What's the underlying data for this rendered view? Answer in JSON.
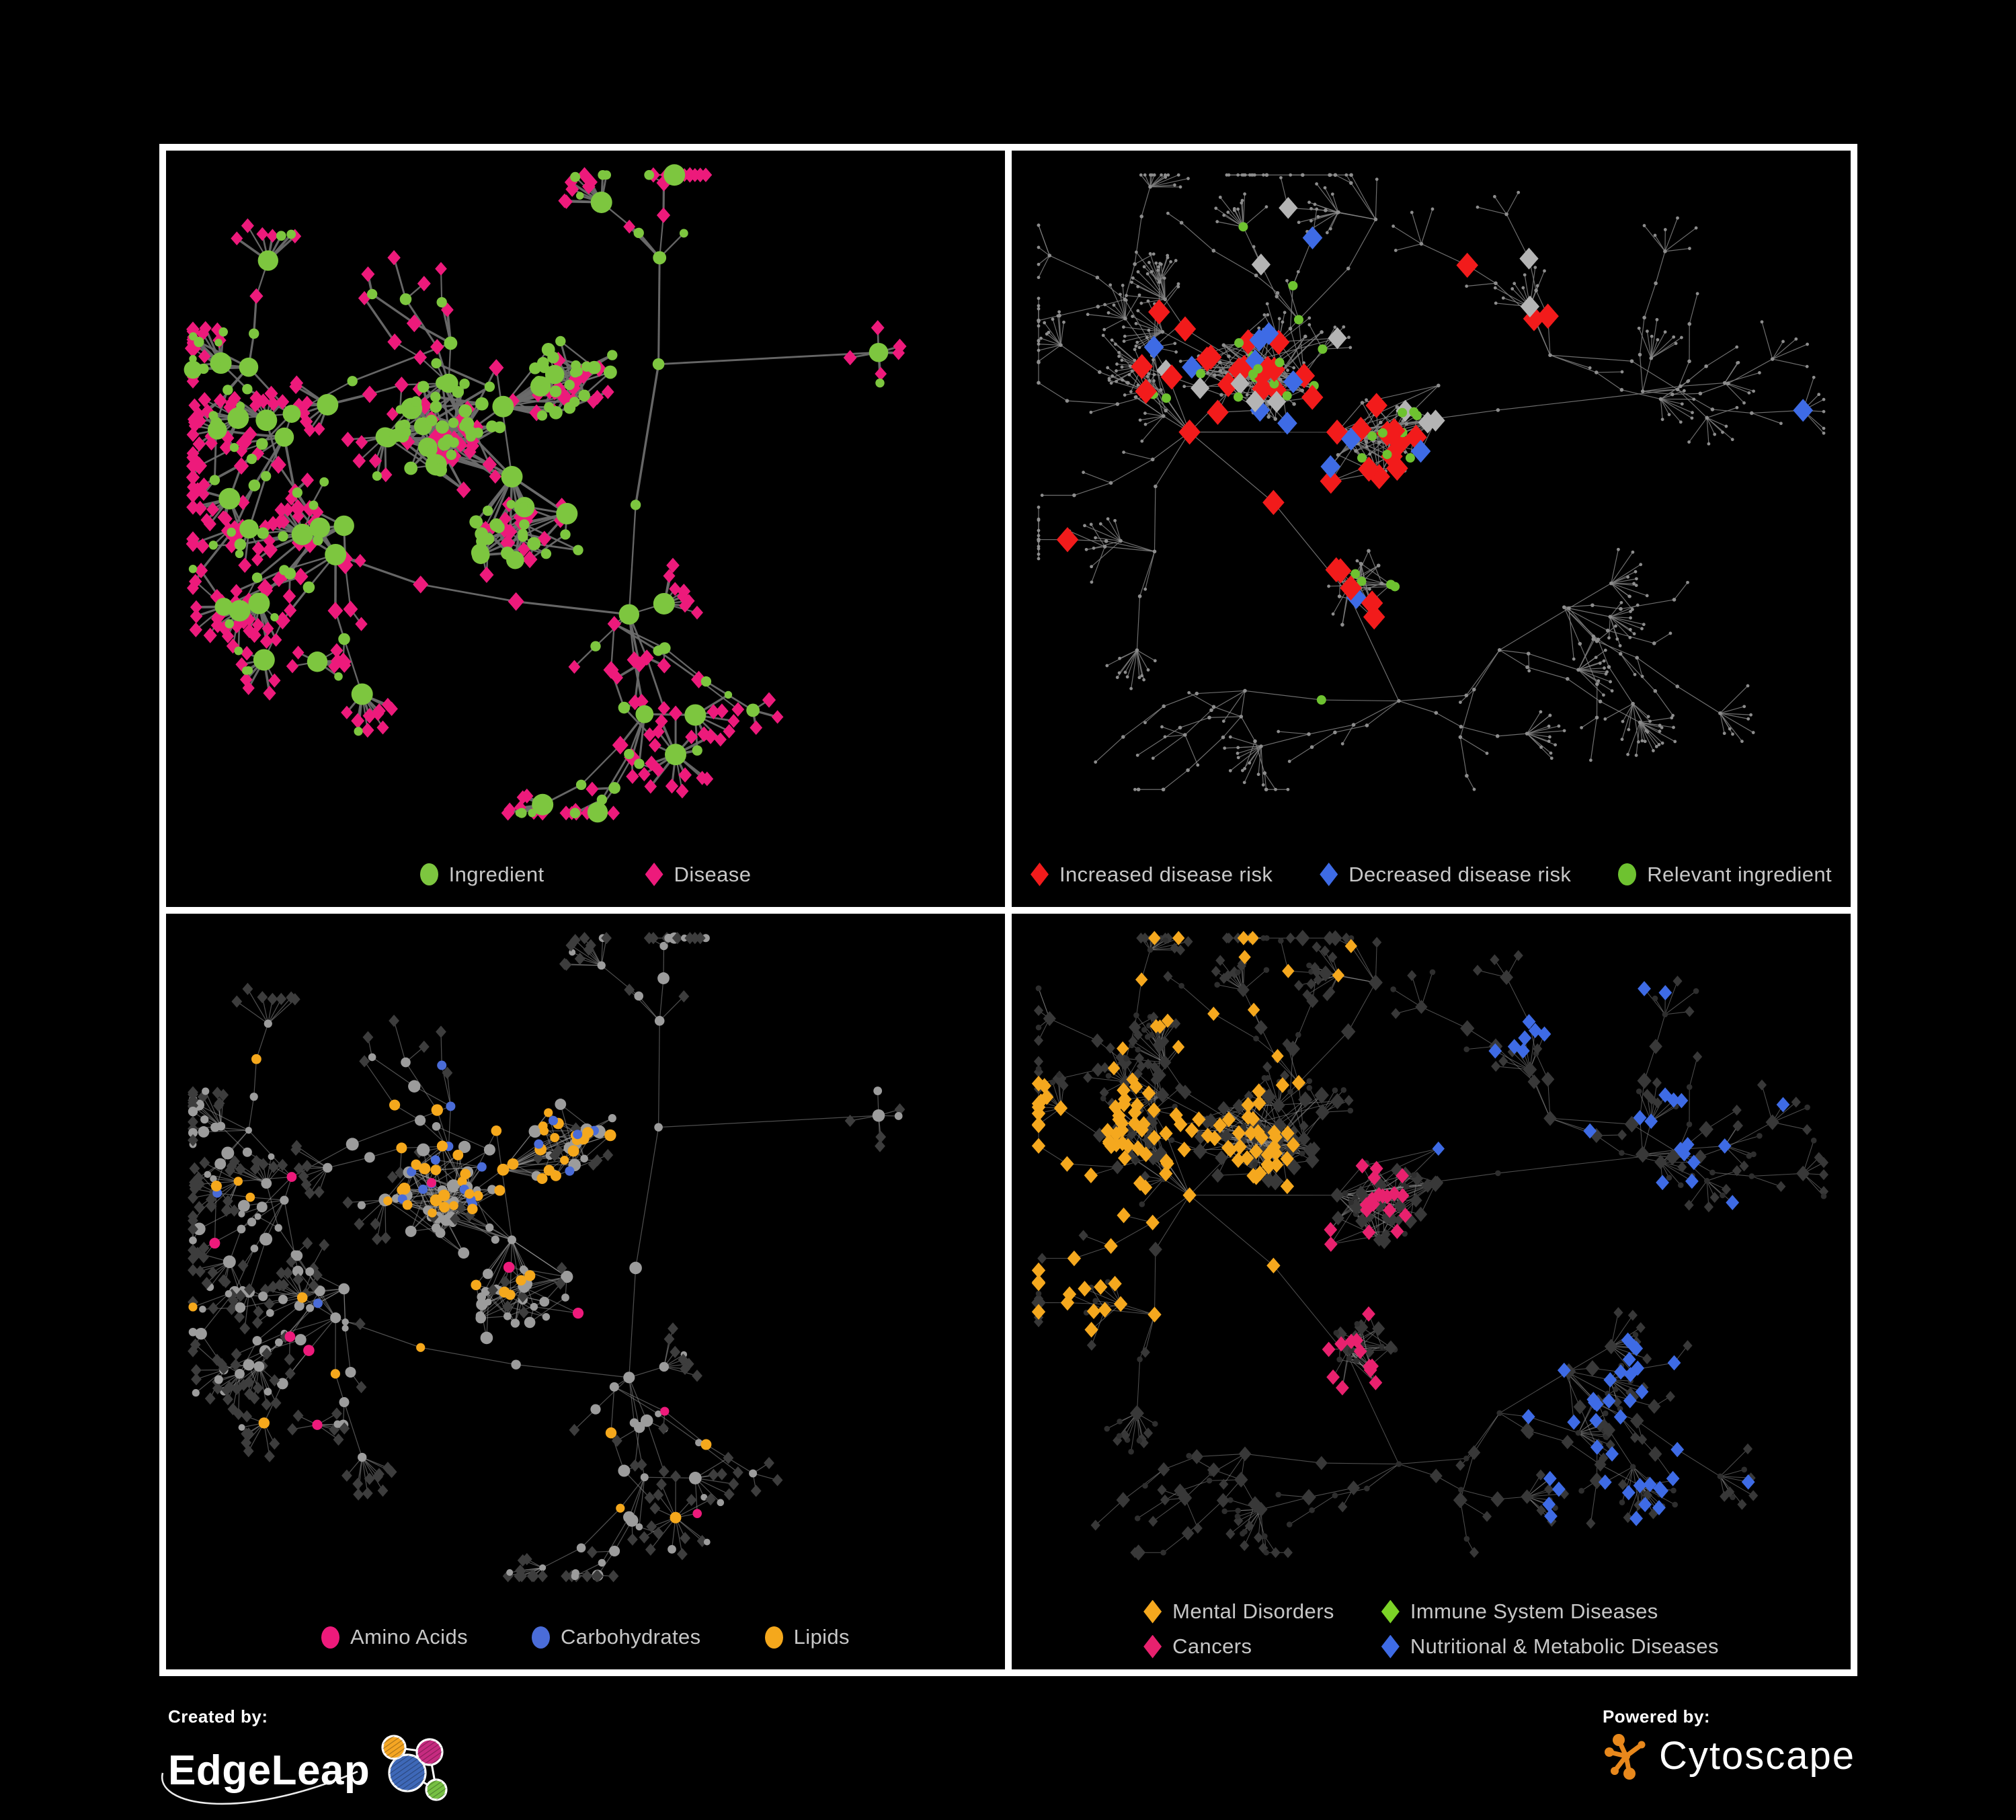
{
  "panels": [
    {
      "id": "ingredient-disease",
      "legend": [
        {
          "label": "Ingredient",
          "shape": "circle",
          "color": "#7DC63F"
        },
        {
          "label": "Disease",
          "shape": "diamond",
          "color": "#ED1A7B"
        }
      ],
      "legend_layout": "row",
      "legend_gap": 150
    },
    {
      "id": "disease-risk",
      "legend": [
        {
          "label": "Increased disease risk",
          "shape": "diamond",
          "color": "#F21B1B"
        },
        {
          "label": "Decreased disease risk",
          "shape": "diamond",
          "color": "#3E6BE5"
        },
        {
          "label": "Relevant ingredient",
          "shape": "circle",
          "color": "#6EC230"
        }
      ],
      "legend_layout": "row",
      "legend_gap": 70
    },
    {
      "id": "ingredient-classes",
      "legend": [
        {
          "label": "Amino Acids",
          "shape": "circle",
          "color": "#ED1A7B"
        },
        {
          "label": "Carbohydrates",
          "shape": "circle",
          "color": "#4A6CD8"
        },
        {
          "label": "Lipids",
          "shape": "circle",
          "color": "#F5A81C"
        }
      ],
      "legend_layout": "row",
      "legend_gap": 95
    },
    {
      "id": "disease-classes",
      "legend": [
        {
          "label": "Mental Disorders",
          "shape": "diamond",
          "color": "#F5A81E"
        },
        {
          "label": "Immune System Diseases",
          "shape": "diamond",
          "color": "#7CD327"
        },
        {
          "label": "Cancers",
          "shape": "diamond",
          "color": "#E8216E"
        },
        {
          "label": "Nutritional & Metabolic Diseases",
          "shape": "diamond",
          "color": "#3E6BE5"
        }
      ],
      "legend_layout": "grid2"
    }
  ],
  "palette": {
    "background": "#000000",
    "panel_border": "#FFFFFF",
    "edge_thick": "#6C6C6C",
    "edge_thin": "#828282",
    "edge_faint": "#9B9B9B",
    "edge_dim": "#8F8F8F",
    "node_tiny_gray": "#8D8D8D",
    "node_gray_circle": "#9C9C9C",
    "dim_diamond_dark": "#3D3D3D",
    "dim_diamond_darker": "#383838",
    "dim_circle_dark": "#2E2E2E",
    "neutral_highlight_diamond": "#B4B4B4",
    "legend_text": "#C7C7C7"
  },
  "footer": {
    "created_by_label": "Created by:",
    "created_by_name": "EdgeLeap",
    "powered_by_label": "Powered by:",
    "powered_by_name": "Cytoscape",
    "edgeleap_colors": {
      "blue": "#3E68B8",
      "orange": "#F5A623",
      "magenta": "#C62B80",
      "green": "#76C043",
      "line": "#FFFFFF"
    },
    "cytoscape_orange": "#E8881C"
  }
}
